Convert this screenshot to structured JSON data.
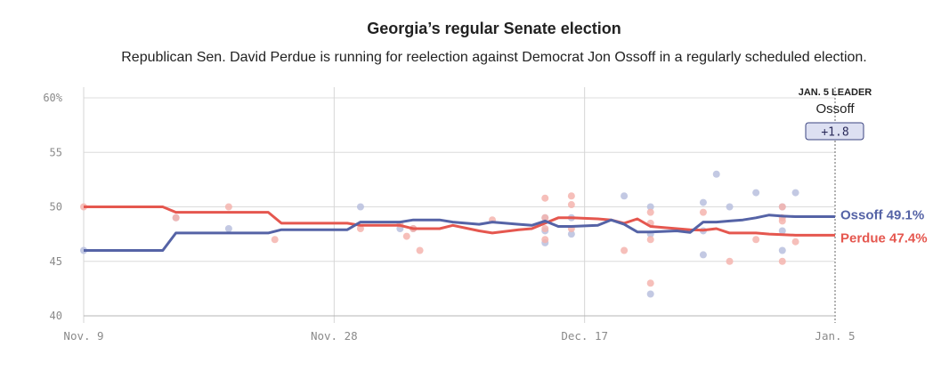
{
  "chart_data": {
    "type": "line",
    "title": "Georgia’s regular Senate election",
    "subtitle": "Republican Sen. David Perdue is running for reelection against Democrat Jon Ossoff in a regularly scheduled election.",
    "xlim": [
      0,
      57
    ],
    "ylim": [
      40,
      60
    ],
    "y_ticks": [
      40,
      45,
      50,
      55,
      60
    ],
    "y_tick_labels": [
      "40",
      "45",
      "50",
      "55",
      "60%"
    ],
    "x_ticks": [
      0,
      19,
      38,
      57
    ],
    "x_tick_labels": [
      "Nov. 9",
      "Nov. 28",
      "Dec. 17",
      "Jan. 5"
    ],
    "grid": true,
    "leader": {
      "label": "JAN. 5 LEADER",
      "name": "Ossoff",
      "margin": "+1.8"
    },
    "series": [
      {
        "name": "Ossoff",
        "end_label": "Ossoff 49.1%",
        "color": "#5563a6",
        "dot_color": "#b9c0de",
        "x": [
          0,
          6,
          7,
          14,
          15,
          20,
          21,
          24,
          25,
          27,
          28,
          30,
          31,
          33,
          34,
          35,
          36,
          37,
          38,
          39,
          40,
          41,
          42,
          43,
          44,
          45,
          46,
          47,
          48,
          49,
          50,
          51,
          52,
          53,
          54,
          55,
          56,
          57
        ],
        "values": [
          46,
          46,
          47.6,
          47.6,
          47.9,
          47.9,
          48.6,
          48.6,
          48.8,
          48.8,
          48.6,
          48.4,
          48.6,
          48.4,
          48.3,
          48.7,
          48.2,
          48.2,
          48.25,
          48.3,
          48.8,
          48.4,
          47.7,
          47.7,
          47.75,
          47.8,
          47.65,
          48.6,
          48.6,
          48.7,
          48.8,
          49.0,
          49.25,
          49.15,
          49.1,
          49.1,
          49.1,
          49.1
        ],
        "polls": [
          [
            0,
            46
          ],
          [
            7,
            49
          ],
          [
            11,
            48
          ],
          [
            21,
            50
          ],
          [
            24,
            48
          ],
          [
            25,
            48
          ],
          [
            35,
            46.7
          ],
          [
            35,
            47.8
          ],
          [
            35,
            49
          ],
          [
            37,
            49
          ],
          [
            37,
            47.5
          ],
          [
            41,
            51
          ],
          [
            43,
            50
          ],
          [
            43,
            47.5
          ],
          [
            43,
            42
          ],
          [
            47,
            45.6
          ],
          [
            47,
            47.8
          ],
          [
            47,
            50.4
          ],
          [
            48,
            53
          ],
          [
            49,
            50
          ],
          [
            51,
            51.3
          ],
          [
            53,
            50
          ],
          [
            53,
            47.8
          ],
          [
            53,
            46
          ],
          [
            54,
            51.3
          ]
        ]
      },
      {
        "name": "Perdue",
        "end_label": "Perdue 47.4%",
        "color": "#e5574f",
        "dot_color": "#f5b4ae",
        "x": [
          0,
          6,
          7,
          14,
          15,
          20,
          21,
          24,
          25,
          27,
          28,
          30,
          31,
          33,
          34,
          35,
          36,
          37,
          38,
          39,
          40,
          41,
          42,
          43,
          44,
          45,
          46,
          47,
          48,
          49,
          50,
          51,
          52,
          53,
          54,
          55,
          56,
          57
        ],
        "values": [
          50,
          50,
          49.5,
          49.5,
          48.5,
          48.5,
          48.3,
          48.3,
          48,
          48,
          48.3,
          47.8,
          47.6,
          47.9,
          48.0,
          48.5,
          49,
          49,
          48.95,
          48.9,
          48.8,
          48.5,
          48.9,
          48.2,
          48.1,
          48.0,
          47.9,
          47.85,
          48.0,
          47.6,
          47.6,
          47.6,
          47.5,
          47.45,
          47.4,
          47.4,
          47.4,
          47.4
        ],
        "polls": [
          [
            0,
            50
          ],
          [
            7,
            49
          ],
          [
            11,
            50
          ],
          [
            14.5,
            47
          ],
          [
            21,
            48
          ],
          [
            24,
            48.4
          ],
          [
            24.5,
            47.3
          ],
          [
            25,
            48
          ],
          [
            25.5,
            46
          ],
          [
            31,
            48.8
          ],
          [
            35,
            50.8
          ],
          [
            35,
            49
          ],
          [
            35,
            48
          ],
          [
            35,
            47
          ],
          [
            37,
            51
          ],
          [
            37,
            50.2
          ],
          [
            37,
            48
          ],
          [
            41,
            46
          ],
          [
            43,
            49.5
          ],
          [
            43,
            47
          ],
          [
            43,
            43
          ],
          [
            43,
            48.5
          ],
          [
            47,
            49.5
          ],
          [
            49,
            45
          ],
          [
            51,
            47
          ],
          [
            53,
            49
          ],
          [
            53,
            50
          ],
          [
            53,
            48.7
          ],
          [
            53,
            45
          ],
          [
            54,
            46.8
          ]
        ]
      }
    ]
  }
}
